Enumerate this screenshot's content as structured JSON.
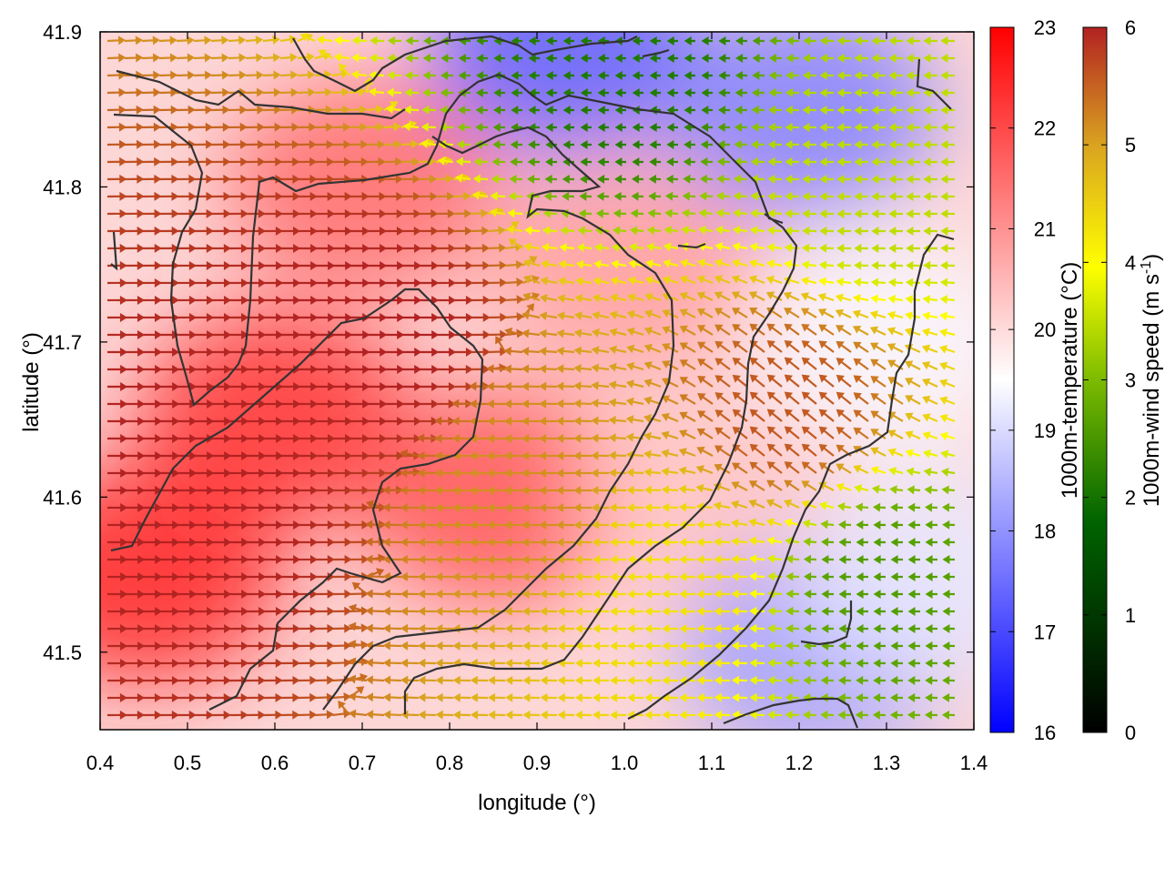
{
  "chart_data": {
    "type": "heatmap",
    "title": "",
    "xlabel": "longitude (°)",
    "ylabel": "latitude (°)",
    "xlim": [
      0.4,
      1.4
    ],
    "ylim": [
      41.45,
      41.9
    ],
    "x_ticks": [
      "0.4",
      "0.5",
      "0.6",
      "0.7",
      "0.8",
      "0.9",
      "1.0",
      "1.1",
      "1.2",
      "1.3",
      "1.4"
    ],
    "y_ticks": [
      "41.5",
      "41.6",
      "41.7",
      "41.8",
      "41.9"
    ],
    "temperature_colorbar": {
      "label": "1000m-temperature (°C)",
      "range": [
        16,
        23
      ],
      "ticks": [
        "16",
        "17",
        "18",
        "19",
        "20",
        "21",
        "22",
        "23"
      ],
      "colors": [
        "#0000ff",
        "#ffffff",
        "#ff0000"
      ]
    },
    "wind_colorbar": {
      "label_main": "1000m-wind speed (m s",
      "label_sup": "-1",
      "label_end": ")",
      "range": [
        0,
        6
      ],
      "ticks": [
        "0",
        "1",
        "2",
        "3",
        "4",
        "5",
        "6"
      ],
      "colors": [
        "#000000",
        "#006400",
        "#7cbb00",
        "#ffff00",
        "#daa520",
        "#b22222"
      ]
    },
    "temperature_field_approx": [
      {
        "lon": 0.45,
        "lat": 41.55,
        "temp": 22.5
      },
      {
        "lon": 0.6,
        "lat": 41.65,
        "temp": 22.3
      },
      {
        "lon": 0.7,
        "lat": 41.8,
        "temp": 21.5
      },
      {
        "lon": 0.85,
        "lat": 41.6,
        "temp": 21.8
      },
      {
        "lon": 1.0,
        "lat": 41.75,
        "temp": 20.8
      },
      {
        "lon": 1.1,
        "lat": 41.6,
        "temp": 20.3
      },
      {
        "lon": 0.93,
        "lat": 41.89,
        "temp": 17.3
      },
      {
        "lon": 1.2,
        "lat": 41.85,
        "temp": 17.8
      },
      {
        "lon": 1.22,
        "lat": 41.5,
        "temp": 18.2
      },
      {
        "lon": 1.3,
        "lat": 41.7,
        "temp": 19.4
      },
      {
        "lon": 1.35,
        "lat": 41.55,
        "temp": 19.2
      }
    ],
    "wind_field_approx": [
      {
        "lon": 0.5,
        "lat": 41.6,
        "speed": 6.0,
        "dir": "east"
      },
      {
        "lon": 0.7,
        "lat": 41.7,
        "speed": 6.0,
        "dir": "east"
      },
      {
        "lon": 0.9,
        "lat": 41.6,
        "speed": 5.0,
        "dir": "west"
      },
      {
        "lon": 1.05,
        "lat": 41.55,
        "speed": 4.0,
        "dir": "west"
      },
      {
        "lon": 1.2,
        "lat": 41.65,
        "speed": 5.5,
        "dir": "northwest"
      },
      {
        "lon": 1.3,
        "lat": 41.8,
        "speed": 3.0,
        "dir": "west"
      },
      {
        "lon": 1.0,
        "lat": 41.88,
        "speed": 1.5,
        "dir": "west"
      },
      {
        "lon": 1.3,
        "lat": 41.55,
        "speed": 2.0,
        "dir": "west"
      }
    ]
  }
}
